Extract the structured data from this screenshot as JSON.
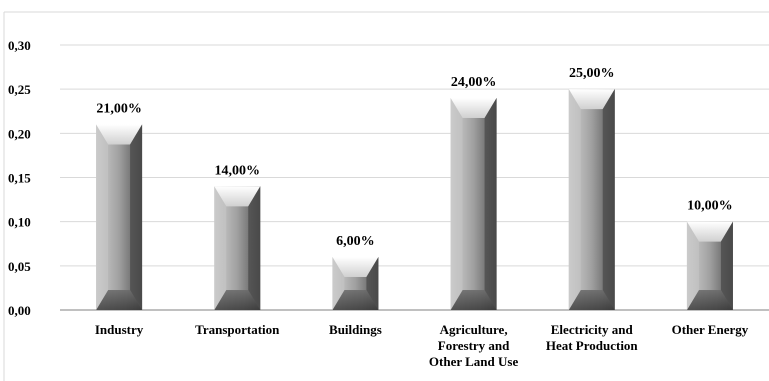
{
  "chart_data": {
    "type": "bar",
    "categories": [
      [
        "Industry"
      ],
      [
        "Transportation"
      ],
      [
        "Buildings"
      ],
      [
        "Agriculture,",
        "Forestry and",
        "Other Land Use"
      ],
      [
        "Electricity and",
        "Heat Production"
      ],
      [
        "Other Energy"
      ]
    ],
    "values": [
      0.21,
      0.14,
      0.06,
      0.24,
      0.25,
      0.1
    ],
    "data_labels": [
      "21,00%",
      "14,00%",
      "6,00%",
      "24,00%",
      "25,00%",
      "10,00%"
    ],
    "y_ticks": [
      "0,00",
      "0,05",
      "0,10",
      "0,15",
      "0,20",
      "0,25",
      "0,30"
    ],
    "y_tick_values": [
      0,
      0.05,
      0.1,
      0.15,
      0.2,
      0.25,
      0.3
    ],
    "ylim": [
      0,
      0.3
    ],
    "grid": true,
    "legend": "none",
    "colors": {
      "bar_dark": "#5a5a5a",
      "bar_mid": "#9a9a9a",
      "bar_light": "#e6e6e6",
      "grid": "#d9d9d9",
      "axis": "#808080"
    }
  }
}
